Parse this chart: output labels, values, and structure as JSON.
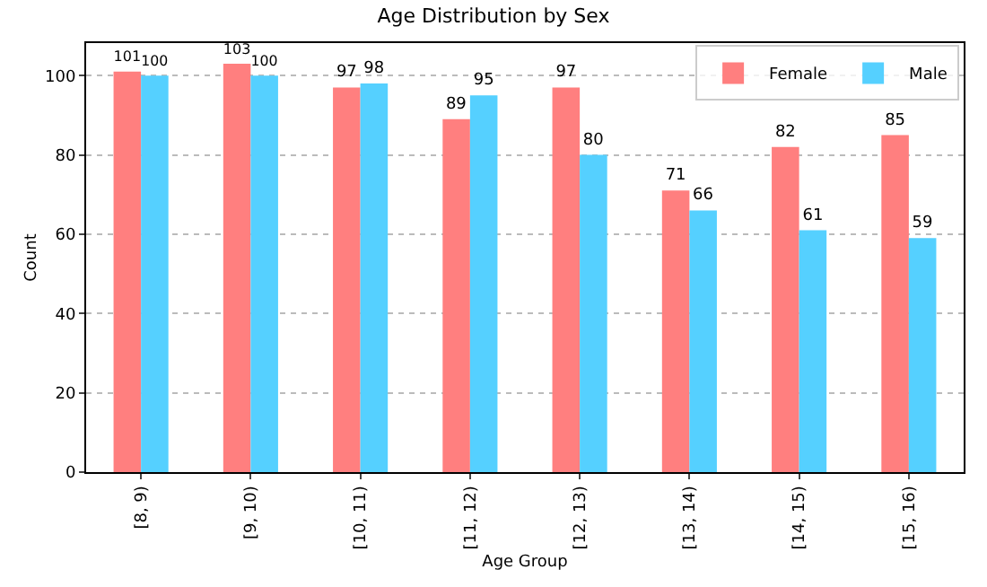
{
  "chart_data": {
    "type": "bar",
    "title": "Age Distribution by Sex",
    "xlabel": "Age Group",
    "ylabel": "Count",
    "categories": [
      "[8, 9)",
      "[9, 10)",
      "[10, 11)",
      "[11, 12)",
      "[12, 13)",
      "[13, 14)",
      "[14, 15)",
      "[15, 16)"
    ],
    "series": [
      {
        "name": "Female",
        "color": "#ff7f7f",
        "values": [
          101,
          103,
          97,
          89,
          97,
          71,
          82,
          85
        ]
      },
      {
        "name": "Male",
        "color": "#55d0ff",
        "values": [
          100,
          100,
          98,
          95,
          80,
          66,
          61,
          59
        ]
      }
    ],
    "ylim": [
      0,
      108.2
    ],
    "yticks": [
      0,
      20,
      40,
      60,
      80,
      100
    ],
    "grid": "y",
    "legend": "top right",
    "data_labels": true
  }
}
